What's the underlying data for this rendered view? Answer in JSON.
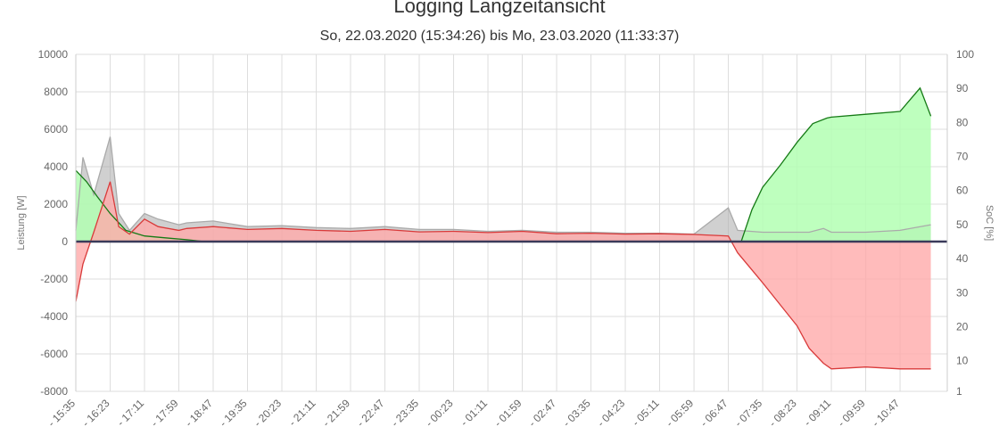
{
  "chart_data": {
    "type": "area",
    "title": "Logging Langzeitansicht",
    "subtitle": "So, 22.03.2020 (15:34:26) bis Mo, 23.03.2020 (11:33:37)",
    "y_left_label": "Leistung [W]",
    "y_right_label": "SoC [%]",
    "y_left_range": [
      -8000,
      10000
    ],
    "y_left_ticks": [
      "10000",
      "8000",
      "6000",
      "4000",
      "2000",
      "0",
      "-2000",
      "-4000",
      "-6000",
      "-8000"
    ],
    "y_right_range": [
      1,
      100
    ],
    "y_right_ticks": [
      "100",
      "90",
      "80",
      "70",
      "60",
      "50",
      "40",
      "30",
      "20",
      "10",
      "1"
    ],
    "x_ticks": [
      "15:35",
      "16:23",
      "17:11",
      "17:59",
      "18:47",
      "19:35",
      "20:23",
      "21:11",
      "21:59",
      "22:47",
      "23:35",
      "00:23",
      "01:11",
      "01:59",
      "02:47",
      "03:35",
      "04:23",
      "05:11",
      "05:59",
      "06:47",
      "07:35",
      "08:23",
      "09:11",
      "09:59",
      "10:47"
    ],
    "grid": true,
    "colors": {
      "red_line": "#d93a3a",
      "red_fill": "#ffaaaa",
      "green_line": "#157a15",
      "green_fill": "#b3ffb3",
      "gray": "#aaaaaa",
      "zero_line": "#3a3a5a",
      "grid": "#dddddd"
    },
    "series": [
      {
        "x": [
          "15:35",
          "15:45",
          "16:00",
          "16:23",
          "16:35",
          "16:50",
          "17:11",
          "17:30",
          "17:59",
          "18:10",
          "18:47",
          "19:35",
          "20:23",
          "21:11",
          "21:59",
          "22:47",
          "23:35",
          "00:23",
          "01:11",
          "01:59",
          "02:47",
          "03:35",
          "04:23",
          "05:11",
          "05:59",
          "06:47",
          "07:00",
          "07:35",
          "08:00",
          "08:23",
          "08:40",
          "09:00",
          "09:11",
          "09:59",
          "10:47",
          "11:30"
        ],
        "values": [
          -3200,
          -1200,
          500,
          3200,
          800,
          400,
          1200,
          800,
          600,
          700,
          800,
          650,
          700,
          600,
          550,
          650,
          520,
          550,
          480,
          550,
          420,
          450,
          400,
          420,
          380,
          300,
          -600,
          -2200,
          -3400,
          -4500,
          -5700,
          -6500,
          -6800,
          -6700,
          -6800,
          -6800
        ]
      },
      {
        "x": [
          "15:35",
          "15:45",
          "16:00",
          "16:23",
          "16:35",
          "16:50",
          "17:11",
          "17:30",
          "17:59",
          "18:10",
          "18:47",
          "19:35",
          "20:23",
          "21:11",
          "21:59",
          "22:47",
          "23:35",
          "00:23",
          "01:11",
          "01:59",
          "02:47",
          "03:35",
          "04:23",
          "05:11",
          "05:59",
          "06:47",
          "07:00",
          "07:35",
          "08:00",
          "08:23",
          "08:40",
          "09:00",
          "09:11",
          "09:59",
          "10:47",
          "11:30"
        ],
        "values": [
          600,
          4500,
          2500,
          5600,
          1500,
          600,
          1500,
          1200,
          900,
          1000,
          1100,
          800,
          850,
          750,
          700,
          800,
          650,
          650,
          550,
          600,
          500,
          500,
          450,
          450,
          400,
          1800,
          600,
          500,
          500,
          500,
          500,
          700,
          500,
          500,
          600,
          900
        ]
      },
      {
        "x": [
          "15:35",
          "15:50",
          "16:05",
          "16:23",
          "16:45",
          "17:11",
          "17:40",
          "18:10",
          "18:35",
          "07:05",
          "07:20",
          "07:35",
          "08:00",
          "08:23",
          "08:45",
          "09:05",
          "09:11",
          "09:59",
          "10:47",
          "11:15",
          "11:30"
        ],
        "values": [
          3800,
          3200,
          2400,
          1500,
          600,
          300,
          200,
          100,
          0,
          0,
          1700,
          2900,
          4100,
          5300,
          6300,
          6600,
          6650,
          6800,
          6950,
          8200,
          6700
        ]
      }
    ]
  }
}
